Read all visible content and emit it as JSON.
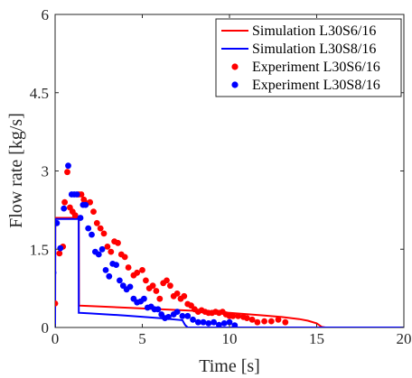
{
  "chart_data": {
    "type": "line",
    "title": "",
    "xlabel": "Time [s]",
    "ylabel": "Flow rate [kg/s]",
    "xlim": [
      0,
      20
    ],
    "ylim": [
      0,
      6
    ],
    "xticks": [
      "0",
      "5",
      "10",
      "15",
      "20"
    ],
    "yticks": [
      "0",
      "1.5",
      "3",
      "4.5",
      "6"
    ],
    "xtick_values": [
      0,
      5,
      10,
      15,
      20
    ],
    "ytick_values": [
      0,
      1.5,
      3,
      4.5,
      6
    ],
    "grid": false,
    "legend_position": "top-right",
    "series": [
      {
        "name": "Simulation L30S6/16",
        "kind": "line",
        "color": "#ff0000",
        "x": [
          0,
          0.01,
          0.3,
          0.7,
          1.0,
          1.3,
          1.36,
          1.37,
          1.4,
          2,
          4,
          6,
          8,
          10,
          12,
          13,
          14,
          14.5,
          15.0,
          15.3,
          15.5,
          20
        ],
        "y": [
          0,
          2.1,
          2.1,
          2.1,
          2.1,
          2.1,
          2.1,
          0.42,
          0.42,
          0.41,
          0.38,
          0.35,
          0.32,
          0.28,
          0.23,
          0.2,
          0.16,
          0.13,
          0.08,
          0.01,
          0,
          0
        ]
      },
      {
        "name": "Simulation L30S8/16",
        "kind": "line",
        "color": "#0000ff",
        "x": [
          0,
          0.01,
          0.3,
          0.7,
          1.0,
          1.3,
          1.35,
          1.36,
          1.4,
          2,
          4,
          6,
          7.3,
          7.45,
          7.6,
          20
        ],
        "y": [
          0,
          2.08,
          2.08,
          2.08,
          2.08,
          2.08,
          2.08,
          0.28,
          0.28,
          0.27,
          0.23,
          0.18,
          0.14,
          0.05,
          0,
          0
        ]
      },
      {
        "name": "Experiment L30S6/16",
        "kind": "scatter",
        "color": "#ff0000",
        "x": [
          0.0,
          0.25,
          0.45,
          0.55,
          0.7,
          0.85,
          1.0,
          1.15,
          1.35,
          1.5,
          1.65,
          1.8,
          2.0,
          2.2,
          2.4,
          2.6,
          2.8,
          3.0,
          3.2,
          3.4,
          3.6,
          3.8,
          4.0,
          4.2,
          4.5,
          4.7,
          5.0,
          5.2,
          5.4,
          5.6,
          5.8,
          6.0,
          6.2,
          6.4,
          6.6,
          6.8,
          7.0,
          7.2,
          7.4,
          7.6,
          7.8,
          8.0,
          8.2,
          8.4,
          8.6,
          8.8,
          9.0,
          9.2,
          9.4,
          9.6,
          9.8,
          10.0,
          10.2,
          10.5,
          10.8,
          11.0,
          11.3,
          11.6,
          12.0,
          12.4,
          12.8,
          13.2
        ],
        "y": [
          0.46,
          1.42,
          1.55,
          2.4,
          2.98,
          2.3,
          2.22,
          2.15,
          2.55,
          2.55,
          2.45,
          2.38,
          2.4,
          2.22,
          2.0,
          1.9,
          1.8,
          1.55,
          1.45,
          1.65,
          1.62,
          1.4,
          1.35,
          1.15,
          1.0,
          1.05,
          1.1,
          0.9,
          0.75,
          0.8,
          0.7,
          0.55,
          0.85,
          0.9,
          0.8,
          0.6,
          0.65,
          0.55,
          0.6,
          0.45,
          0.42,
          0.35,
          0.3,
          0.33,
          0.3,
          0.28,
          0.28,
          0.3,
          0.28,
          0.3,
          0.25,
          0.22,
          0.22,
          0.22,
          0.2,
          0.18,
          0.15,
          0.1,
          0.12,
          0.12,
          0.15,
          0.1
        ]
      },
      {
        "name": "Experiment L30S8/16",
        "kind": "scatter",
        "color": "#0000ff",
        "x": [
          -0.1,
          0.1,
          0.3,
          0.5,
          0.75,
          0.95,
          1.1,
          1.25,
          1.45,
          1.6,
          1.75,
          1.9,
          2.1,
          2.3,
          2.5,
          2.7,
          2.9,
          3.1,
          3.3,
          3.5,
          3.7,
          3.9,
          4.1,
          4.3,
          4.5,
          4.7,
          4.9,
          5.1,
          5.3,
          5.5,
          5.7,
          5.9,
          6.1,
          6.3,
          6.5,
          6.8,
          7.0,
          7.3,
          7.6,
          7.9,
          8.2,
          8.5,
          8.8,
          9.1,
          9.4,
          9.7,
          10.0,
          10.3
        ],
        "y": [
          1.05,
          2.0,
          1.52,
          2.28,
          3.1,
          2.55,
          2.55,
          2.55,
          2.1,
          2.35,
          2.35,
          1.9,
          1.78,
          1.45,
          1.4,
          1.5,
          1.1,
          0.98,
          1.22,
          1.2,
          0.9,
          0.8,
          0.73,
          0.78,
          0.55,
          0.48,
          0.5,
          0.55,
          0.38,
          0.4,
          0.35,
          0.35,
          0.25,
          0.18,
          0.2,
          0.25,
          0.3,
          0.22,
          0.22,
          0.15,
          0.1,
          0.1,
          0.08,
          0.1,
          0.05,
          0.08,
          0.1,
          0.04
        ]
      }
    ]
  }
}
